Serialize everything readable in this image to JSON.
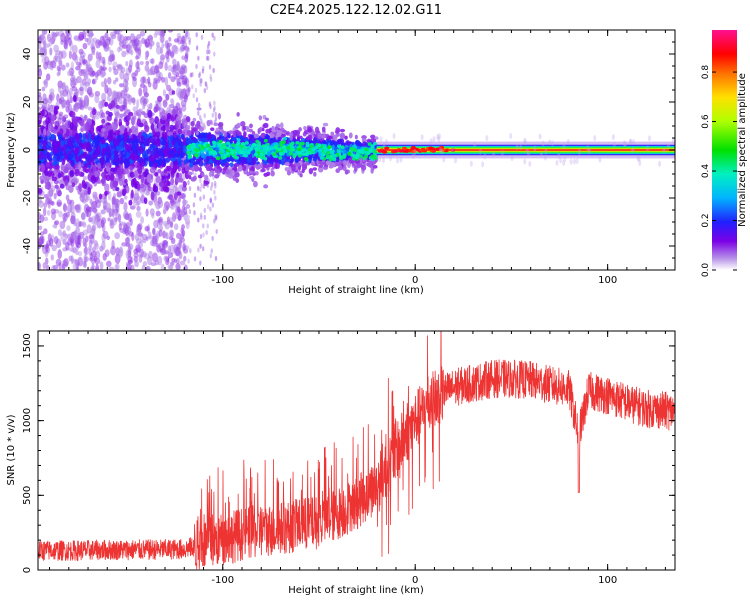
{
  "title": "C2E4.2025.122.12.02.G11",
  "colors": {
    "snr_line": "#ee3333",
    "band_center": "#ff2020",
    "spectrum_low": "#c9a6f0"
  },
  "chart_data": [
    {
      "type": "heatmap",
      "xlabel": "Height of straight line (km)",
      "ylabel": "Frequency (Hz)",
      "xlim": [
        -196,
        135
      ],
      "ylim": [
        -50,
        50
      ],
      "xticks": [
        -100,
        0,
        100
      ],
      "yticks": [
        -40,
        -20,
        0,
        20,
        40
      ],
      "grid": false,
      "colorbar": {
        "label": "Normalized spectral amplitude",
        "range": [
          0.0,
          0.97
        ],
        "ticks": [
          0.0,
          0.2,
          0.4,
          0.6,
          0.8
        ],
        "colormap": "rainbow (white-purple-blue-cyan-green-yellow-red-magenta)"
      },
      "description_points": [
        {
          "x_range": [
            -196,
            -118
          ],
          "freq_spread": 50,
          "amplitude": 0.05
        },
        {
          "x_range": [
            -196,
            -118
          ],
          "freq_spread": 10,
          "amplitude": 0.2
        },
        {
          "x_range": [
            -118,
            -20
          ],
          "freq_spread": 8,
          "amplitude": 0.35
        },
        {
          "x_range": [
            -20,
            135
          ],
          "freq_spread": 1.5,
          "amplitude": 0.9
        }
      ]
    },
    {
      "type": "line",
      "xlabel": "Height of straight line (km)",
      "ylabel": "SNR (10 * v/v)",
      "xlim": [
        -196,
        135
      ],
      "ylim": [
        0,
        1600
      ],
      "xticks": [
        -100,
        0,
        100
      ],
      "yticks": [
        0,
        500,
        1000,
        1500
      ],
      "grid": false,
      "series": [
        {
          "x": [
            -196,
            -180,
            -160,
            -140,
            -120,
            -110,
            -100,
            -90,
            -80,
            -70,
            -60,
            -50,
            -40,
            -30,
            -20,
            -10,
            0,
            10,
            20,
            30,
            40,
            50,
            60,
            70,
            80,
            85,
            90,
            100,
            110,
            120,
            135
          ],
          "y": [
            130,
            130,
            135,
            135,
            140,
            170,
            210,
            240,
            260,
            280,
            300,
            320,
            380,
            450,
            560,
            800,
            1000,
            1150,
            1220,
            1250,
            1280,
            1280,
            1270,
            1240,
            1210,
            900,
            1200,
            1170,
            1120,
            1080,
            1060
          ]
        }
      ]
    }
  ]
}
